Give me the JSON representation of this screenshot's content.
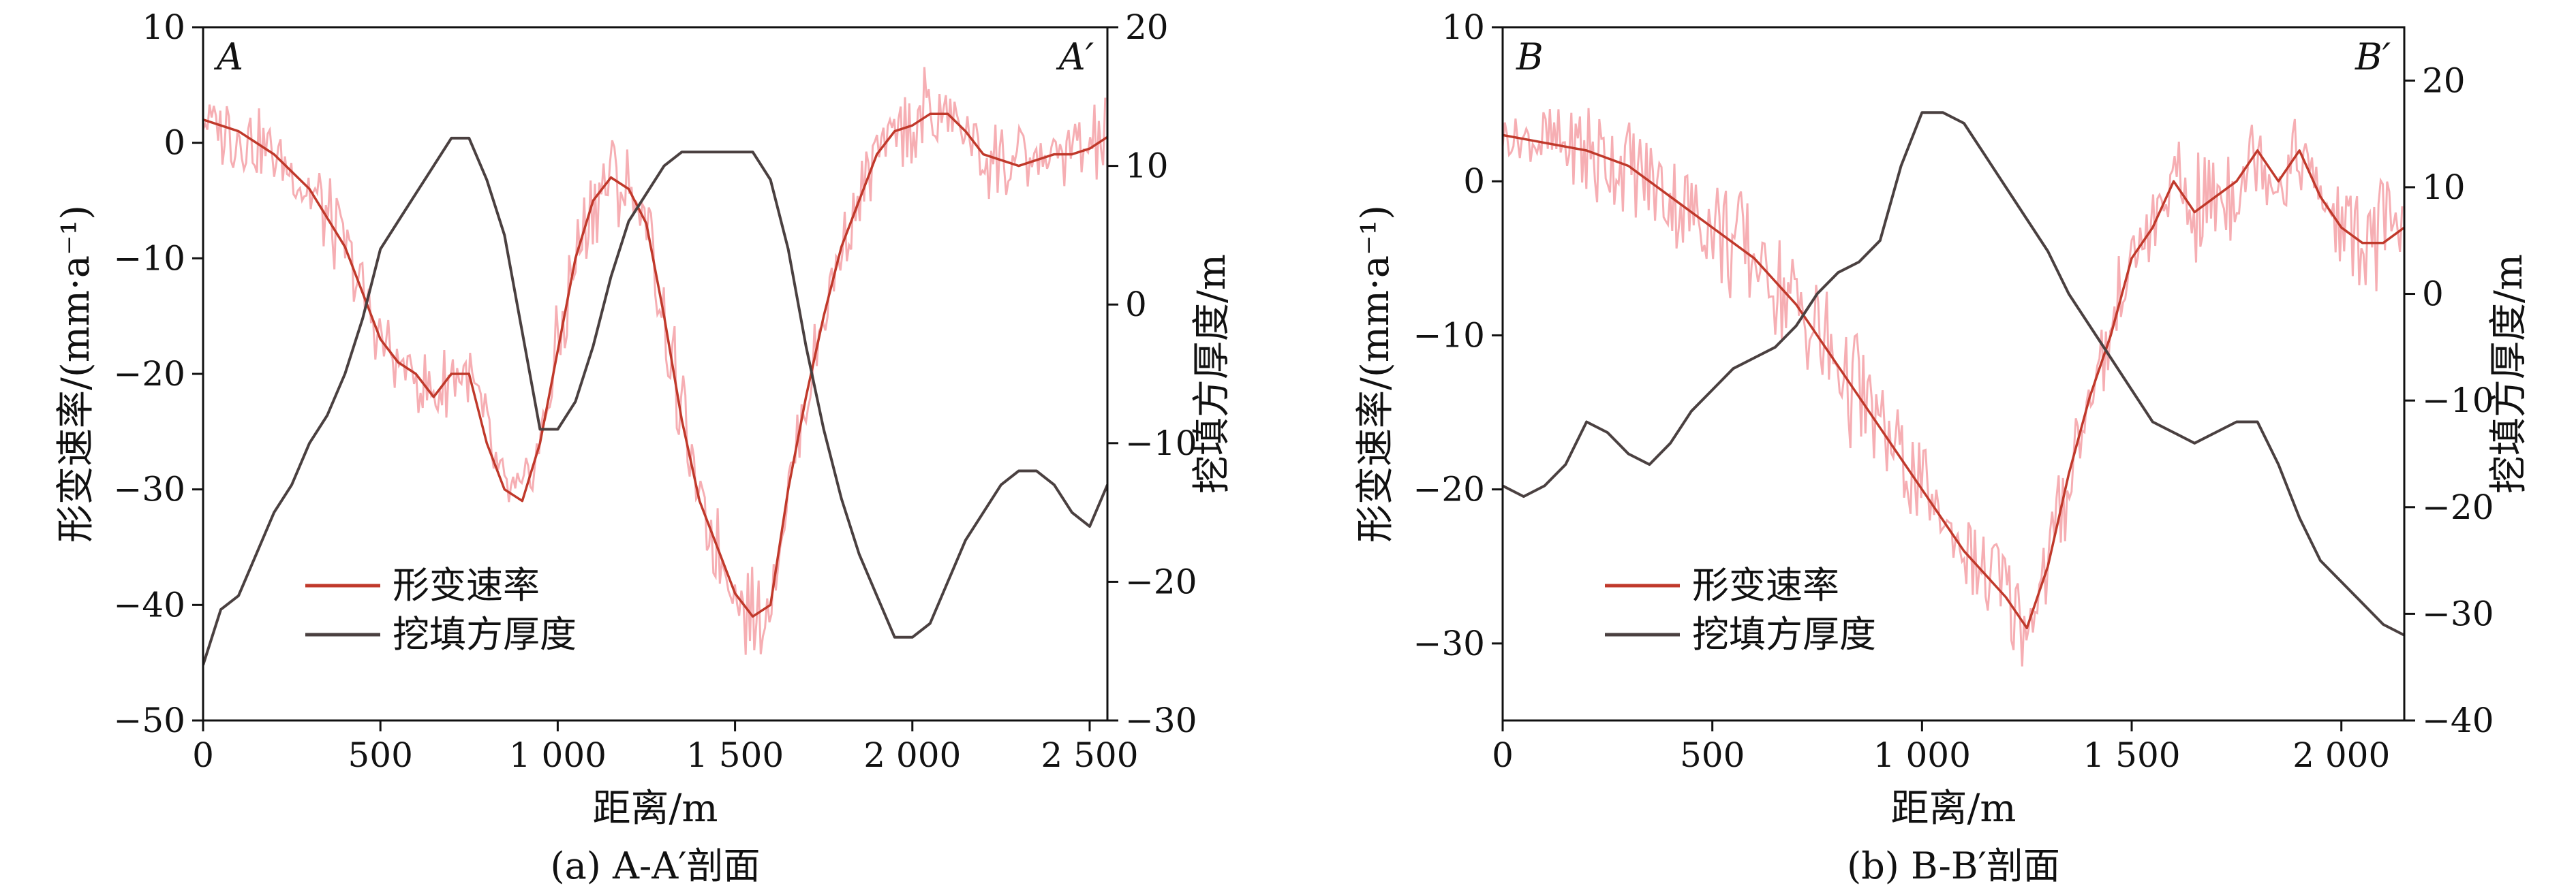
{
  "colors": {
    "deformation_rate": "#c0392b",
    "deformation_raw": "#f5a0a6",
    "fill_thickness": "#4a4040",
    "axis": "#111111"
  },
  "chart_data": [
    {
      "type": "line",
      "panel": "a",
      "caption": "(a) A-A′剖面",
      "title": "",
      "corner_left": "A",
      "corner_right": "A′",
      "xlabel": "距离/m",
      "ylabel": "形变速率/(mm·a⁻¹)",
      "ylabel_right": "挖填方厚度/m",
      "xlim": [
        0,
        2550
      ],
      "ylim": [
        -50,
        10
      ],
      "ylim_right": [
        -30,
        20
      ],
      "x_ticks": [
        0,
        500,
        1000,
        1500,
        2000,
        2500
      ],
      "x_tick_labels": [
        "0",
        "500",
        "1 000",
        "1 500",
        "2 000",
        "2 500"
      ],
      "y_ticks": [
        10,
        0,
        -10,
        -20,
        -30,
        -40,
        -50
      ],
      "y_tick_labels": [
        "10",
        "0",
        "−10",
        "−20",
        "−30",
        "−40",
        "−50"
      ],
      "y_right_ticks": [
        20,
        10,
        0,
        -10,
        -20,
        -30
      ],
      "y_right_tick_labels": [
        "20",
        "10",
        "0",
        "−10",
        "−20",
        "−30"
      ],
      "legend": [
        "形变速率",
        "挖填方厚度"
      ],
      "legend_position": "bottom-left",
      "series": [
        {
          "name": "形变速率",
          "axis": "left",
          "x": [
            0,
            100,
            200,
            300,
            400,
            450,
            500,
            550,
            600,
            650,
            700,
            750,
            800,
            850,
            900,
            950,
            1000,
            1050,
            1100,
            1150,
            1200,
            1250,
            1300,
            1350,
            1400,
            1450,
            1500,
            1550,
            1600,
            1650,
            1700,
            1750,
            1800,
            1850,
            1900,
            1950,
            2000,
            2050,
            2100,
            2150,
            2200,
            2250,
            2300,
            2350,
            2400,
            2450,
            2500,
            2550
          ],
          "values": [
            2,
            1,
            -1,
            -4,
            -9,
            -13,
            -17,
            -19,
            -20,
            -22,
            -20,
            -20,
            -26,
            -30,
            -31,
            -26,
            -18,
            -10,
            -5,
            -3,
            -4,
            -7,
            -15,
            -24,
            -31,
            -35,
            -39,
            -41,
            -40,
            -30,
            -22,
            -15,
            -9,
            -5,
            -1,
            1,
            1.5,
            2.5,
            2.5,
            1,
            -1,
            -1.5,
            -2,
            -1.5,
            -1,
            -1,
            -0.5,
            0.5
          ]
        },
        {
          "name": "挖填方厚度",
          "axis": "right",
          "x": [
            0,
            50,
            100,
            150,
            200,
            250,
            300,
            350,
            400,
            450,
            500,
            550,
            600,
            650,
            700,
            750,
            800,
            850,
            900,
            950,
            1000,
            1050,
            1100,
            1150,
            1200,
            1250,
            1300,
            1350,
            1400,
            1450,
            1500,
            1550,
            1600,
            1650,
            1700,
            1750,
            1800,
            1850,
            1900,
            1950,
            2000,
            2050,
            2100,
            2150,
            2200,
            2250,
            2300,
            2350,
            2400,
            2450,
            2500,
            2550
          ],
          "values": [
            -26,
            -22,
            -21,
            -18,
            -15,
            -13,
            -10,
            -8,
            -5,
            -1,
            4,
            6,
            8,
            10,
            12,
            12,
            9,
            5,
            -2,
            -9,
            -9,
            -7,
            -3,
            2,
            6,
            8,
            10,
            11,
            11,
            11,
            11,
            11,
            9,
            4,
            -3,
            -9,
            -14,
            -18,
            -21,
            -24,
            -24,
            -23,
            -20,
            -17,
            -15,
            -13,
            -12,
            -12,
            -13,
            -15,
            -16,
            -13
          ]
        }
      ]
    },
    {
      "type": "line",
      "panel": "b",
      "caption": "(b) B-B′剖面",
      "title": "",
      "corner_left": "B",
      "corner_right": "B′",
      "xlabel": "距离/m",
      "ylabel": "形变速率/(mm·a⁻¹)",
      "ylabel_right": "挖填方厚度/m",
      "xlim": [
        0,
        2150
      ],
      "ylim": [
        -35,
        10
      ],
      "ylim_right": [
        -40,
        25
      ],
      "x_ticks": [
        0,
        500,
        1000,
        1500,
        2000
      ],
      "x_tick_labels": [
        "0",
        "500",
        "1 000",
        "1 500",
        "2 000"
      ],
      "y_ticks": [
        10,
        0,
        -10,
        -20,
        -30
      ],
      "y_tick_labels": [
        "10",
        "0",
        "−10",
        "−20",
        "−30"
      ],
      "y_right_ticks": [
        20,
        10,
        0,
        -10,
        -20,
        -30,
        -40
      ],
      "y_right_tick_labels": [
        "20",
        "10",
        "0",
        "−10",
        "−20",
        "−30",
        "−40"
      ],
      "legend": [
        "形变速率",
        "挖填方厚度"
      ],
      "legend_position": "bottom-left",
      "series": [
        {
          "name": "形变速率",
          "axis": "left",
          "x": [
            0,
            100,
            200,
            300,
            400,
            500,
            600,
            700,
            800,
            900,
            1000,
            1100,
            1200,
            1250,
            1300,
            1350,
            1400,
            1450,
            1500,
            1550,
            1600,
            1650,
            1700,
            1750,
            1800,
            1850,
            1900,
            1950,
            2000,
            2050,
            2100,
            2150
          ],
          "values": [
            3,
            2.5,
            2,
            1,
            -1,
            -3,
            -5,
            -8,
            -12,
            -16,
            -20,
            -24,
            -27,
            -29,
            -25,
            -19,
            -14,
            -10,
            -5,
            -3,
            0,
            -2,
            -1,
            0,
            2,
            0,
            2,
            -1,
            -3,
            -4,
            -4,
            -3
          ]
        },
        {
          "name": "挖填方厚度",
          "axis": "right",
          "x": [
            0,
            50,
            100,
            150,
            200,
            250,
            300,
            350,
            400,
            450,
            500,
            550,
            600,
            650,
            700,
            750,
            800,
            850,
            900,
            950,
            1000,
            1050,
            1100,
            1150,
            1200,
            1250,
            1300,
            1350,
            1400,
            1450,
            1500,
            1550,
            1600,
            1650,
            1700,
            1750,
            1800,
            1850,
            1900,
            1950,
            2000,
            2050,
            2100,
            2150
          ],
          "values": [
            -18,
            -19,
            -18,
            -16,
            -12,
            -13,
            -15,
            -16,
            -14,
            -11,
            -9,
            -7,
            -6,
            -5,
            -3,
            0,
            2,
            3,
            5,
            12,
            17,
            17,
            16,
            13,
            10,
            7,
            4,
            0,
            -3,
            -6,
            -9,
            -12,
            -13,
            -14,
            -13,
            -12,
            -12,
            -16,
            -21,
            -25,
            -27,
            -29,
            -31,
            -32
          ]
        }
      ]
    }
  ]
}
